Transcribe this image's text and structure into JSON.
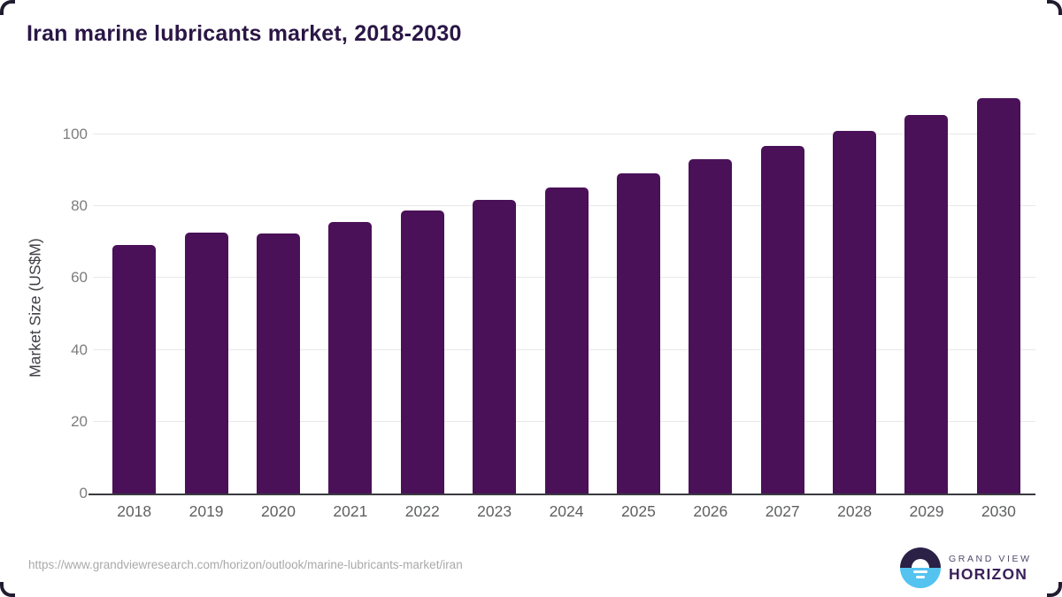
{
  "title": "Iran marine lubricants market, 2018-2030",
  "footer": {
    "source_url": "https://www.grandviewresearch.com/horizon/outlook/marine-lubricants-market/iran",
    "brand_line1": "GRAND VIEW",
    "brand_line2": "HORIZON"
  },
  "colors": {
    "bar": "#4a1158",
    "title": "#2a1646",
    "gridline": "#e8e8e8",
    "axis_line": "#3a3a40",
    "x_label": "#5f6062",
    "y_label": "#7d7d7d",
    "url_text": "#a9a9a9",
    "logo_dark": "#2b2045",
    "logo_blue": "#55c3f0"
  },
  "chart_data": {
    "type": "bar",
    "title": "Iran marine lubricants market, 2018-2030",
    "categories": [
      "2018",
      "2019",
      "2020",
      "2021",
      "2022",
      "2023",
      "2024",
      "2025",
      "2026",
      "2027",
      "2028",
      "2029",
      "2030"
    ],
    "values": [
      69.2,
      72.6,
      72.4,
      75.5,
      78.7,
      81.9,
      85.2,
      89.2,
      93.0,
      96.9,
      101.0,
      105.4,
      110.0
    ],
    "xlabel": "",
    "ylabel": "Market Size (US$M)",
    "ylim": [
      0,
      113.3
    ],
    "yticks": [
      0,
      20,
      40,
      60,
      80,
      100
    ],
    "grid": true,
    "legend": "none"
  }
}
